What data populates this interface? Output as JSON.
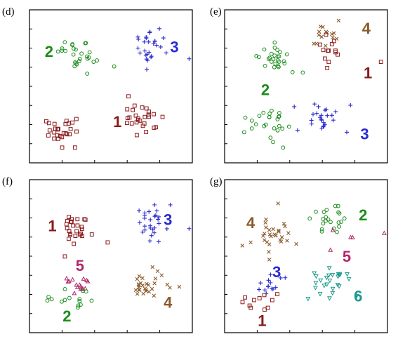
{
  "colors": {
    "1": "#8b1a1a",
    "2": "#1a8c1a",
    "3": "#2a2ad0",
    "4": "#8b5a2b",
    "5": "#b02a6a",
    "6": "#1a9a8a"
  },
  "markers": {
    "1": "square",
    "2": "circle",
    "3": "plus",
    "4": "cross",
    "5": "triangle",
    "6": "triangle-down"
  },
  "chart_data": [
    {
      "type": "scatter",
      "panel": "(d)",
      "xlim": [
        0,
        10
      ],
      "ylim": [
        0,
        10
      ],
      "grid": false,
      "clusters": [
        {
          "label": "2",
          "marker": "circle",
          "center": [
            3.0,
            7.2
          ],
          "spread": [
            0.55,
            0.55
          ],
          "n": 26,
          "outliers": [
            [
              5.2,
              6.3
            ]
          ],
          "label_pos": [
            1.2,
            7.3
          ]
        },
        {
          "label": "3",
          "marker": "plus",
          "center": [
            7.4,
            7.6
          ],
          "spread": [
            0.6,
            0.55
          ],
          "n": 26,
          "outliers": [
            [
              9.8,
              6.8
            ],
            [
              7.2,
              6.1
            ]
          ],
          "label_pos": [
            8.9,
            7.6
          ]
        },
        {
          "label": "1",
          "marker": "square",
          "center": [
            2.1,
            2.3
          ],
          "spread": [
            0.75,
            0.55
          ],
          "n": 26,
          "outliers": [
            [
              2.8,
              1.0
            ]
          ],
          "label_pos": [
            5.4,
            2.7
          ]
        },
        {
          "label": "1",
          "marker": "square",
          "center": [
            7.0,
            2.8
          ],
          "spread": [
            0.7,
            0.55
          ],
          "n": 26,
          "outliers": [
            [
              6.0,
              3.5
            ]
          ],
          "label_pos": null
        }
      ]
    },
    {
      "type": "scatter",
      "panel": "(e)",
      "xlim": [
        0,
        10
      ],
      "ylim": [
        0,
        10
      ],
      "grid": false,
      "clusters": [
        {
          "label": "2",
          "marker": "circle",
          "center": [
            2.9,
            6.8
          ],
          "spread": [
            0.55,
            0.55
          ],
          "n": 26,
          "outliers": [
            [
              4.8,
              5.9
            ]
          ],
          "label_pos": [
            2.5,
            4.8
          ]
        },
        {
          "label": "4",
          "marker": "cross",
          "center": [
            6.4,
            8.1
          ],
          "spread": [
            0.55,
            0.5
          ],
          "n": 14,
          "outliers": [
            [
              7.0,
              9.3
            ]
          ],
          "label_pos": [
            8.7,
            8.8
          ]
        },
        {
          "label": "1",
          "marker": "square",
          "center": [
            6.5,
            7.2
          ],
          "spread": [
            0.55,
            0.45
          ],
          "n": 12,
          "outliers": [
            [
              9.6,
              6.6
            ],
            [
              6.3,
              6.2
            ]
          ],
          "label_pos": [
            8.8,
            5.9
          ]
        },
        {
          "label": "2",
          "marker": "circle",
          "center": [
            2.7,
            2.5
          ],
          "spread": [
            0.75,
            0.55
          ],
          "n": 24,
          "outliers": [
            [
              1.2,
              2.0
            ]
          ],
          "label_pos": null
        },
        {
          "label": "3",
          "marker": "plus",
          "center": [
            6.0,
            3.0
          ],
          "spread": [
            0.65,
            0.5
          ],
          "n": 24,
          "outliers": [
            [
              7.5,
              2.0
            ]
          ],
          "label_pos": [
            8.6,
            1.9
          ]
        }
      ]
    },
    {
      "type": "scatter",
      "panel": "(f)",
      "xlim": [
        0,
        10
      ],
      "ylim": [
        0,
        10
      ],
      "grid": false,
      "clusters": [
        {
          "label": "1",
          "marker": "square",
          "center": [
            3.0,
            6.9
          ],
          "spread": [
            0.55,
            0.55
          ],
          "n": 26,
          "outliers": [
            [
              4.8,
              5.9
            ]
          ],
          "label_pos": [
            1.4,
            7.0
          ]
        },
        {
          "label": "3",
          "marker": "plus",
          "center": [
            7.4,
            7.4
          ],
          "spread": [
            0.55,
            0.6
          ],
          "n": 26,
          "outliers": [
            [
              9.8,
              6.8
            ],
            [
              7.4,
              6.0
            ]
          ],
          "label_pos": [
            8.5,
            7.4
          ]
        },
        {
          "label": "5",
          "marker": "triangle",
          "center": [
            2.9,
            3.2
          ],
          "spread": [
            0.55,
            0.35
          ],
          "n": 16,
          "outliers": [],
          "label_pos": [
            3.1,
            4.4
          ]
        },
        {
          "label": "2",
          "marker": "circle",
          "center": [
            2.6,
            2.2
          ],
          "spread": [
            0.65,
            0.5
          ],
          "n": 14,
          "outliers": [
            [
              1.1,
              2.1
            ]
          ],
          "label_pos": [
            2.3,
            1.1
          ]
        },
        {
          "label": "4",
          "marker": "cross",
          "center": [
            7.0,
            3.2
          ],
          "spread": [
            0.75,
            0.55
          ],
          "n": 28,
          "outliers": [
            [
              9.2,
              3.0
            ]
          ],
          "label_pos": [
            8.5,
            2.0
          ]
        }
      ]
    },
    {
      "type": "scatter",
      "panel": "(g)",
      "xlim": [
        0,
        10
      ],
      "ylim": [
        0,
        10
      ],
      "grid": false,
      "clusters": [
        {
          "label": "4",
          "marker": "cross",
          "center": [
            3.0,
            6.4
          ],
          "spread": [
            0.7,
            0.7
          ],
          "n": 28,
          "outliers": [
            [
              4.4,
              5.8
            ],
            [
              1.6,
              5.9
            ]
          ],
          "label_pos": [
            1.6,
            7.2
          ]
        },
        {
          "label": "2",
          "marker": "circle",
          "center": [
            6.5,
            7.4
          ],
          "spread": [
            0.55,
            0.6
          ],
          "n": 22,
          "outliers": [],
          "label_pos": [
            8.5,
            7.7
          ]
        },
        {
          "label": "5",
          "marker": "triangle",
          "center": [
            7.8,
            6.5
          ],
          "spread": [
            0.9,
            0.3
          ],
          "n": 3,
          "outliers": [
            [
              9.8,
              6.5
            ],
            [
              6.5,
              5.4
            ]
          ],
          "label_pos": [
            7.5,
            5.0
          ]
        },
        {
          "label": "6",
          "marker": "triangle-down",
          "center": [
            6.5,
            3.3
          ],
          "spread": [
            0.75,
            0.55
          ],
          "n": 26,
          "outliers": [],
          "label_pos": [
            8.2,
            2.4
          ]
        },
        {
          "label": "3",
          "marker": "plus",
          "center": [
            2.6,
            3.2
          ],
          "spread": [
            0.6,
            0.35
          ],
          "n": 14,
          "outliers": [],
          "label_pos": [
            3.2,
            4.0
          ]
        },
        {
          "label": "1",
          "marker": "square",
          "center": [
            2.5,
            2.1
          ],
          "spread": [
            0.6,
            0.35
          ],
          "n": 10,
          "outliers": [
            [
              1.1,
              2.0
            ]
          ],
          "label_pos": [
            2.3,
            0.8
          ]
        }
      ]
    }
  ]
}
